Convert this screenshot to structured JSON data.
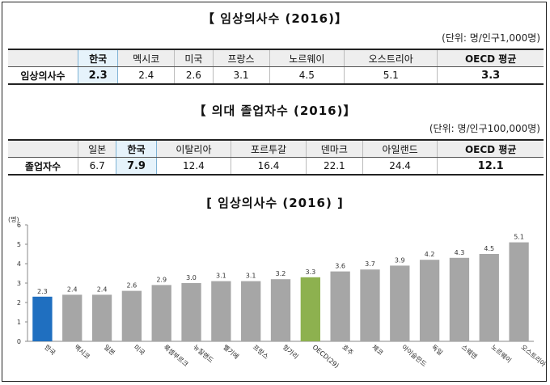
{
  "table1": {
    "title": "【 임상의사수 (2016)】",
    "unit": "(단위: 명/인구1,000명)",
    "row_label": "임상의사수",
    "headers": [
      "한국",
      "멕시코",
      "미국",
      "프랑스",
      "노르웨이",
      "오스트리아",
      "OECD 평균"
    ],
    "values": [
      "2.3",
      "2.4",
      "2.6",
      "3.1",
      "4.5",
      "5.1",
      "3.3"
    ]
  },
  "table2": {
    "title": "【 의대 졸업자수 (2016)】",
    "unit": "(단위: 명/인구100,000명)",
    "row_label": "졸업자수",
    "headers": [
      "일본",
      "한국",
      "이탈리아",
      "포르투갈",
      "덴마크",
      "아일랜드",
      "OECD 평균"
    ],
    "values": [
      "6.7",
      "7.9",
      "12.4",
      "16.4",
      "22.1",
      "24.4",
      "12.1"
    ]
  },
  "chart_data": {
    "type": "bar",
    "title": "[ 임상의사수 (2016) ]",
    "ylabel": "(명)",
    "ylim": [
      0,
      6
    ],
    "yticks": [
      "0",
      "1",
      "2",
      "3",
      "4",
      "5",
      "6"
    ],
    "grid": false,
    "categories": [
      "한국",
      "멕시코",
      "일본",
      "미국",
      "룩셈부르크",
      "뉴질랜드",
      "벨기에",
      "프랑스",
      "헝가리",
      "OECD(29)",
      "호주",
      "체코",
      "아이슬란드",
      "독일",
      "스웨덴",
      "노르웨이",
      "오스트리아"
    ],
    "values": [
      2.3,
      2.4,
      2.4,
      2.6,
      2.9,
      3.0,
      3.1,
      3.1,
      3.2,
      3.3,
      3.6,
      3.7,
      3.9,
      4.2,
      4.3,
      4.5,
      5.1
    ],
    "value_labels": [
      "2.3",
      "2.4",
      "2.4",
      "2.6",
      "2.9",
      "3.0",
      "3.1",
      "3.1",
      "3.2",
      "3.3",
      "3.6",
      "3.7",
      "3.9",
      "4.2",
      "4.3",
      "4.5",
      "5.1"
    ],
    "colors": {
      "korea": "#1f6fc0",
      "oecd": "#8db14f",
      "default": "#a6a6a6"
    },
    "highlight": {
      "korea_index": 0,
      "oecd_index": 9
    }
  }
}
